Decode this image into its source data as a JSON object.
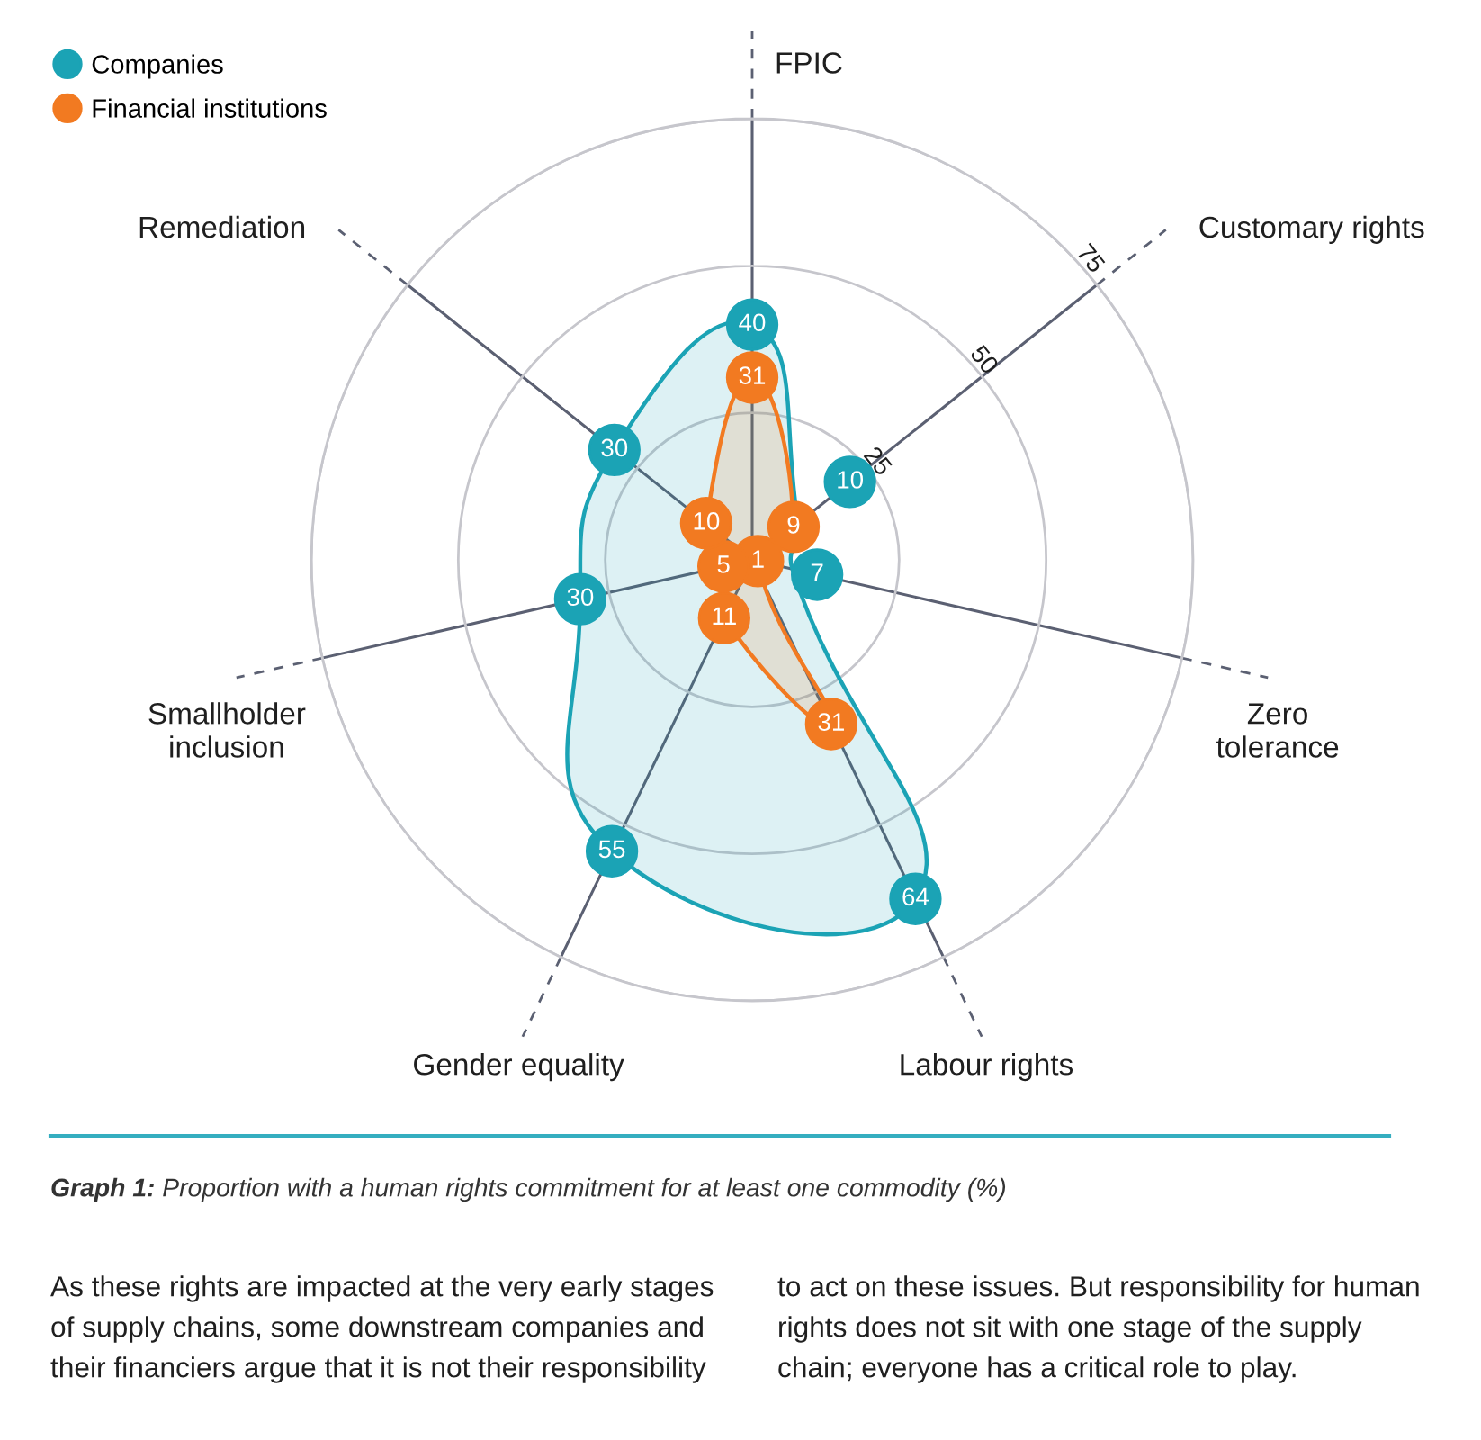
{
  "chart_data": {
    "type": "radar",
    "categories": [
      "FPIC",
      "Customary rights",
      "Zero tolerance",
      "Labour rights",
      "Gender equality",
      "Smallholder inclusion",
      "Remediation"
    ],
    "series": [
      {
        "name": "Companies",
        "color": "#1ba3b5",
        "values": [
          40,
          10,
          7,
          64,
          55,
          30,
          30
        ]
      },
      {
        "name": "Financial institutions",
        "color": "#f27a21",
        "values": [
          31,
          9,
          1,
          31,
          11,
          5,
          10
        ]
      }
    ],
    "ylim": [
      0,
      75
    ],
    "yticks": [
      25,
      50,
      75
    ],
    "grid": true,
    "legend": "top left",
    "marker": "circle",
    "line_style": "solid",
    "data_labels": true,
    "annotations": [
      "Graph 1:",
      "Proportion with a human rights commitment for at least one commodity (%)",
      "As these rights are impacted at the very early stages",
      "of supply chains, some downstream companies and",
      "their financiers argue that it is not their responsibility",
      "to act on these issues. But responsibility for human",
      "rights does not sit with one stage of the supply",
      "chain; everyone has a critical role to play."
    ]
  }
}
